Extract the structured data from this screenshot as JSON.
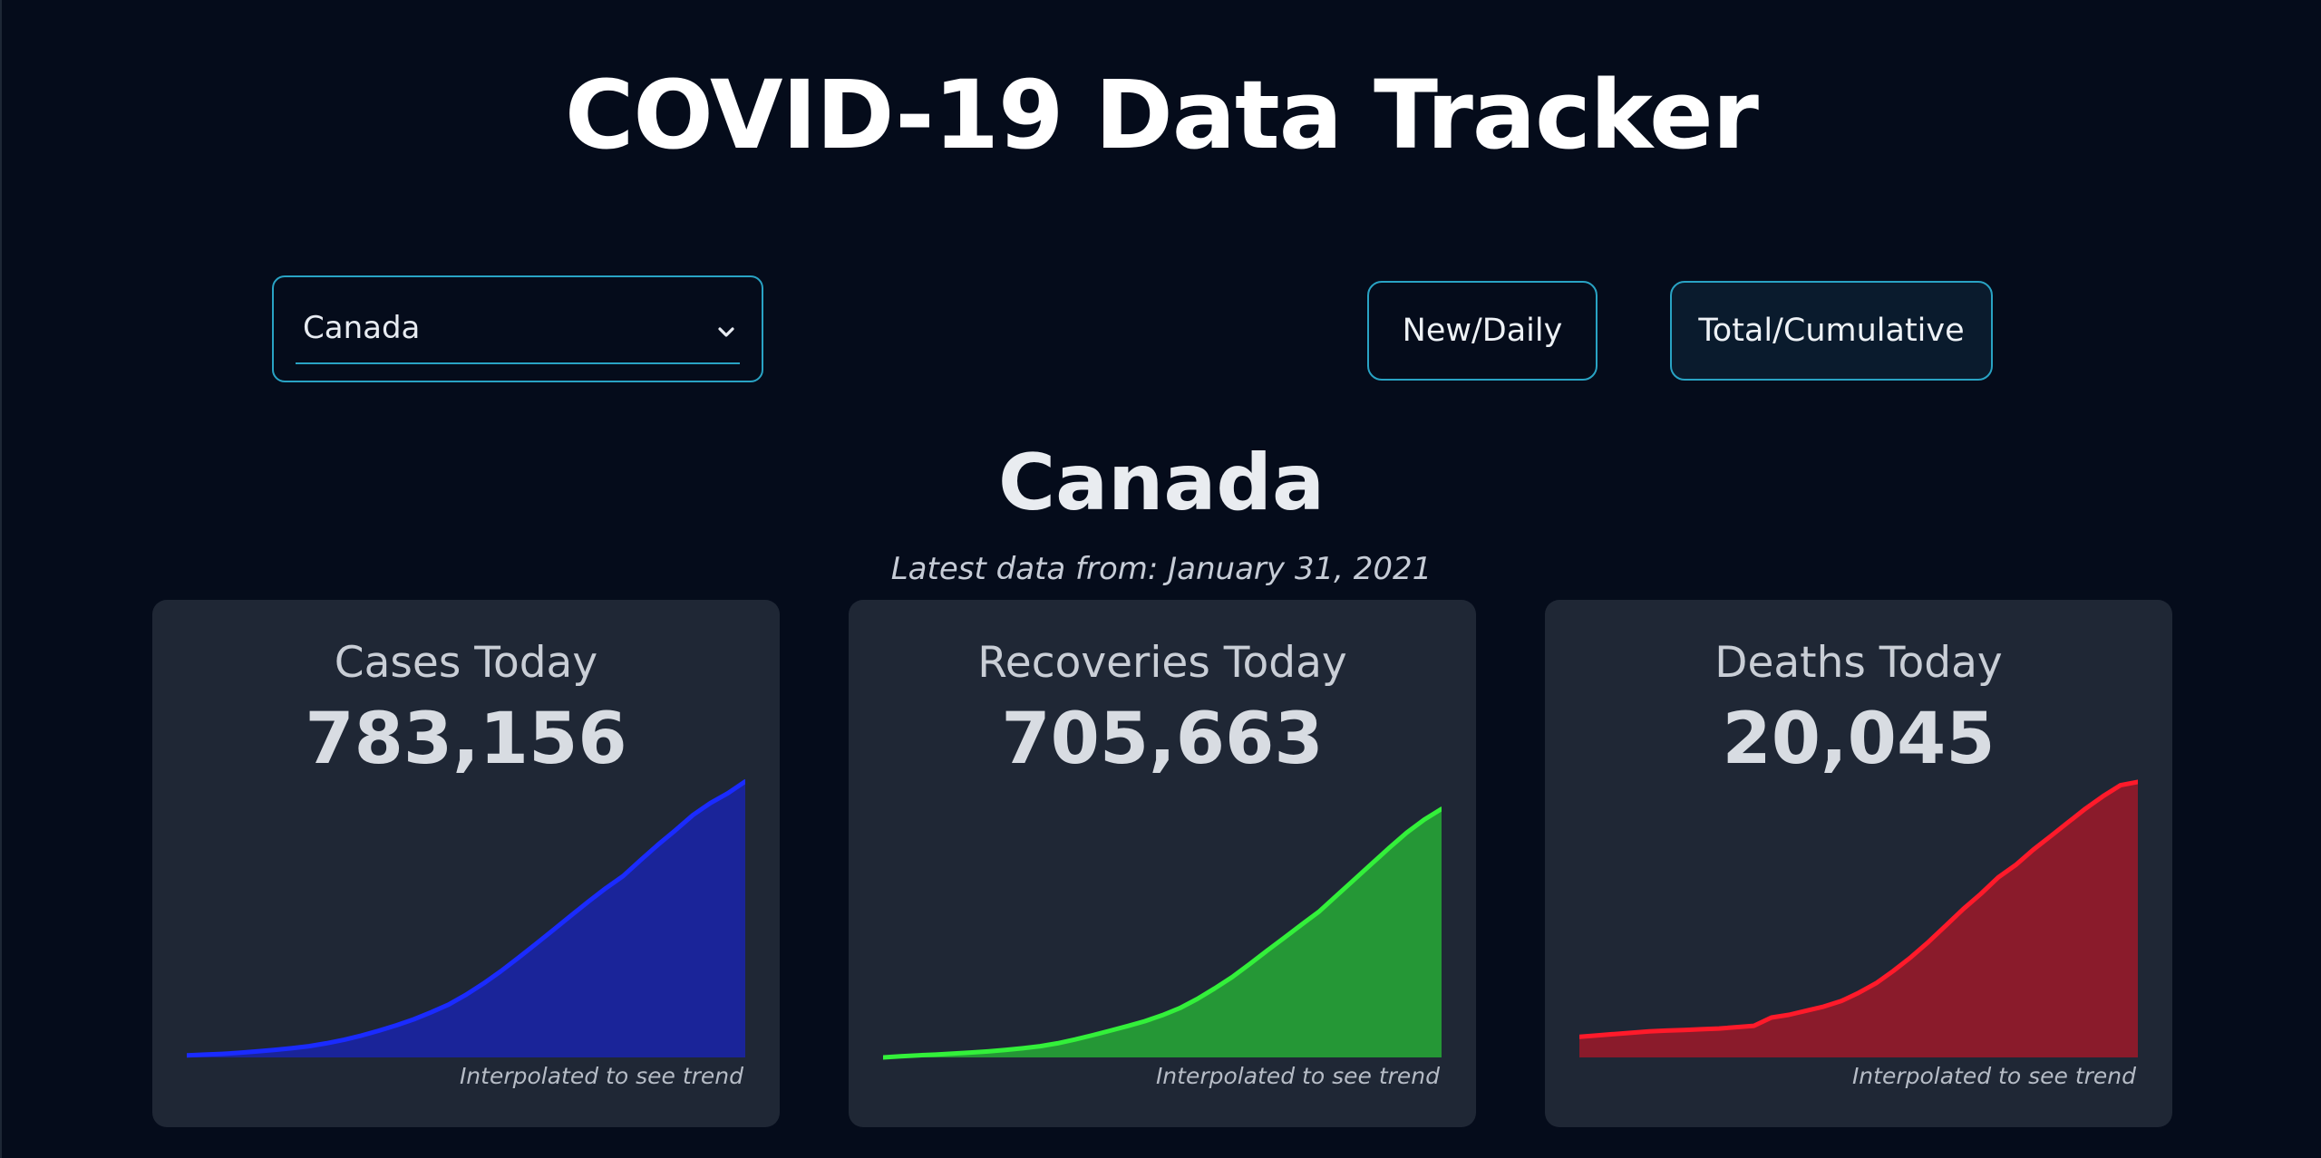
{
  "header": {
    "title": "COVID-19 Data Tracker"
  },
  "controls": {
    "country_select": {
      "value": "Canada"
    },
    "new_daily_label": "New/Daily",
    "total_cumulative_label": "Total/Cumulative"
  },
  "summary": {
    "country": "Canada",
    "latest_data": "Latest data from: January 31, 2021"
  },
  "cards": [
    {
      "title": "Cases Today",
      "value": "783,156",
      "note": "Interpolated to see trend",
      "line_color": "#1a2bff",
      "fill_color": "#1a2499"
    },
    {
      "title": "Recoveries Today",
      "value": "705,663",
      "note": "Interpolated to see trend",
      "line_color": "#33f03a",
      "fill_color": "#259736"
    },
    {
      "title": "Deaths Today",
      "value": "20,045",
      "note": "Interpolated to see trend",
      "line_color": "#ff1a2a",
      "fill_color": "#8a1b2b"
    }
  ],
  "chart_data": [
    {
      "type": "area",
      "name": "cases",
      "ylim": [
        0,
        800000
      ],
      "values": [
        6000,
        8000,
        10000,
        13000,
        17000,
        21000,
        26000,
        32000,
        40000,
        50000,
        62000,
        76000,
        91000,
        108000,
        128000,
        150000,
        178000,
        210000,
        245000,
        283000,
        322000,
        362000,
        402000,
        442000,
        480000,
        515000,
        560000,
        604000,
        645000,
        688000,
        722000,
        750000,
        783156
      ]
    },
    {
      "type": "area",
      "name": "recoveries",
      "ylim": [
        0,
        800000
      ],
      "values": [
        0,
        3000,
        6000,
        8000,
        11000,
        14000,
        17000,
        21000,
        26000,
        32000,
        40000,
        51000,
        63000,
        76000,
        89000,
        103000,
        120000,
        140000,
        166000,
        196000,
        228000,
        265000,
        303000,
        340000,
        378000,
        415000,
        460000,
        505000,
        550000,
        595000,
        638000,
        675000,
        705663
      ]
    },
    {
      "type": "area",
      "name": "deaths",
      "ylim": [
        0,
        20500
      ],
      "values": [
        1500,
        1600,
        1700,
        1800,
        1900,
        1950,
        2000,
        2050,
        2100,
        2200,
        2300,
        2900,
        3100,
        3400,
        3700,
        4100,
        4700,
        5400,
        6300,
        7300,
        8400,
        9600,
        10800,
        11900,
        13100,
        14000,
        15100,
        16100,
        17100,
        18100,
        19000,
        19800,
        20045
      ]
    }
  ]
}
